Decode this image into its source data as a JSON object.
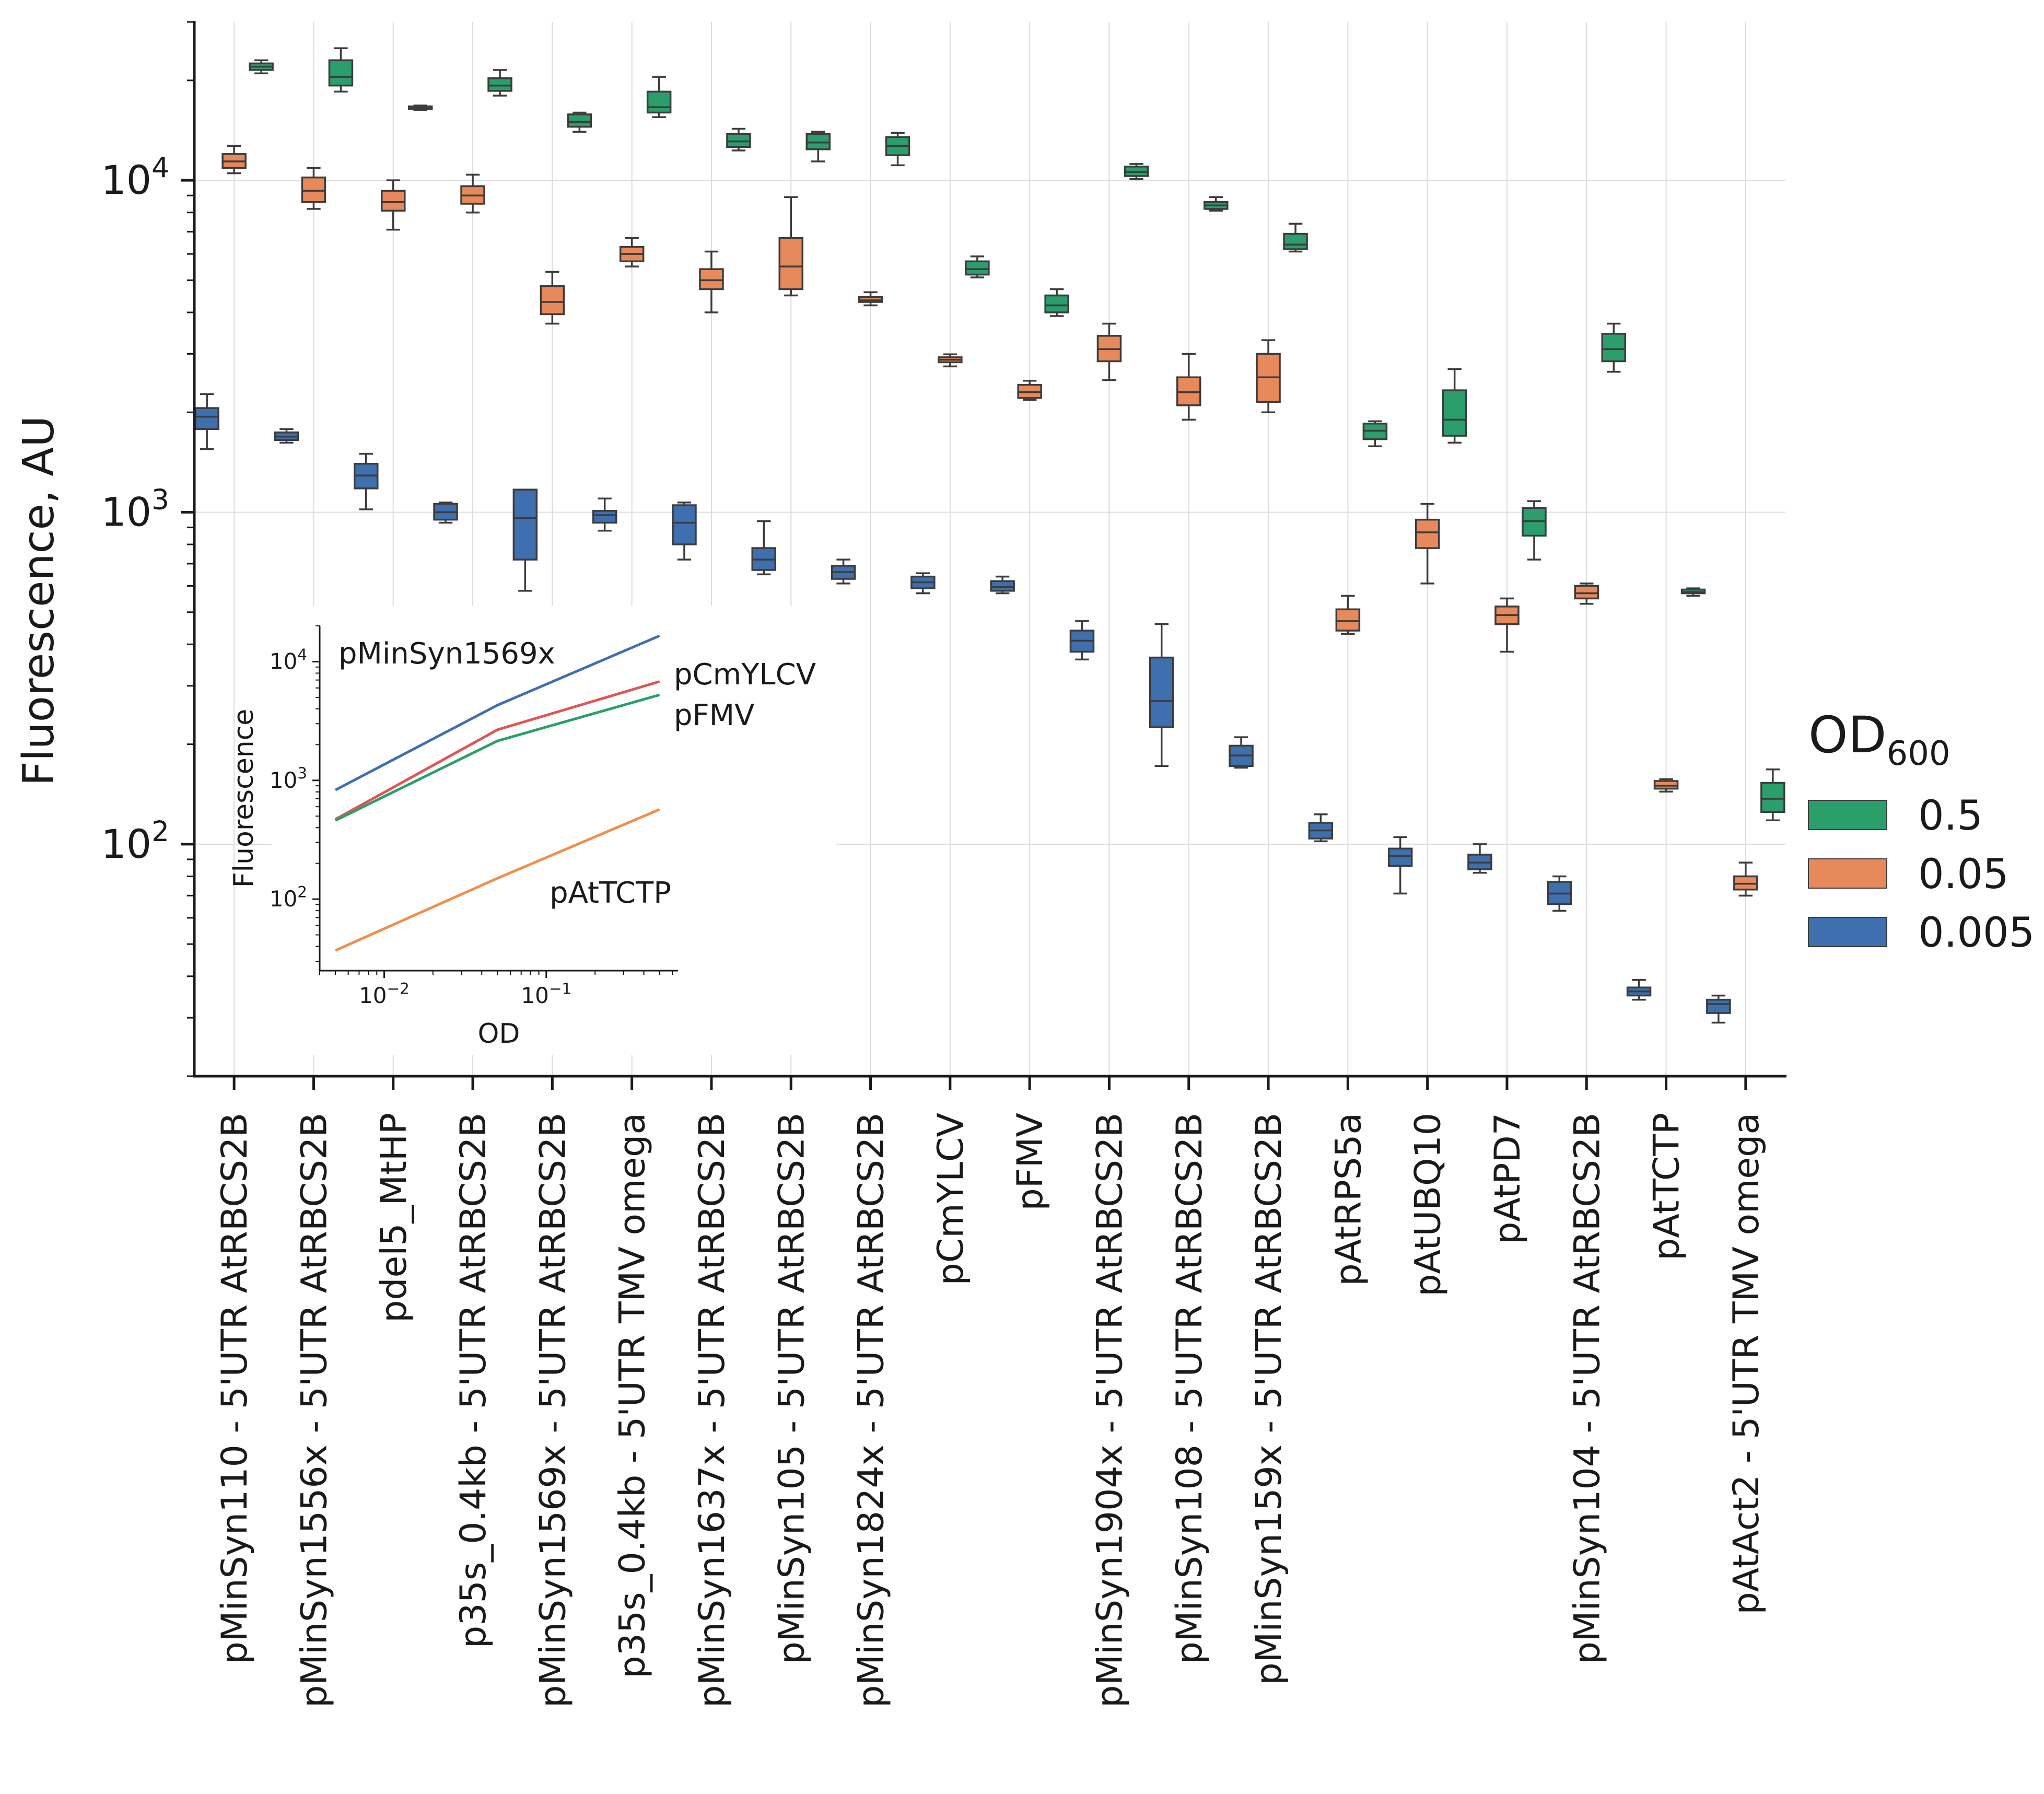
{
  "chart_data": {
    "type": "box",
    "ylabel": "Fluorescence, AU",
    "yscale": "log",
    "ylim": [
      20,
      30000
    ],
    "y_ticks": [
      {
        "value": 100,
        "base": "10",
        "exp": "2"
      },
      {
        "value": 1000,
        "base": "10",
        "exp": "3"
      },
      {
        "value": 10000,
        "base": "10",
        "exp": "4"
      }
    ],
    "legend": {
      "title_main": "OD",
      "title_sub": "600",
      "placement": "right",
      "entries": [
        {
          "label": "0.5",
          "color": "#2a9e6b"
        },
        {
          "label": "0.05",
          "color": "#e8895c"
        },
        {
          "label": "0.005",
          "color": "#3e6fae"
        }
      ]
    },
    "categories": [
      "pMinSyn110 - 5'UTR AtRBCS2B",
      "pMinSyn1556x - 5'UTR AtRBCS2B",
      "pdel5_MtHP",
      "p35s_0.4kb - 5'UTR AtRBCS2B",
      "pMinSyn1569x - 5'UTR AtRBCS2B",
      "p35s_0.4kb - 5'UTR TMV omega",
      "pMinSyn1637x - 5'UTR AtRBCS2B",
      "pMinSyn105 - 5'UTR AtRBCS2B",
      "pMinSyn1824x - 5'UTR AtRBCS2B",
      "pCmYLCV",
      "pFMV",
      "pMinSyn1904x - 5'UTR AtRBCS2B",
      "pMinSyn108 - 5'UTR AtRBCS2B",
      "pMinSyn159x - 5'UTR AtRBCS2B",
      "pAtRPS5a",
      "pAtUBQ10",
      "pAtPD7",
      "pMinSyn104 - 5'UTR AtRBCS2B",
      "pAtTCTP",
      "pAtAct2 - 5'UTR TMV omega"
    ],
    "series": [
      {
        "name": "0.5",
        "color": "#2a9e6b",
        "stats": [
          [
            21000,
            21500,
            22000,
            22500,
            23000
          ],
          [
            18500,
            19300,
            20500,
            23000,
            25000
          ],
          [
            16300,
            16400,
            16500,
            16700,
            16800
          ],
          [
            18000,
            18600,
            19300,
            20300,
            21500
          ],
          [
            14000,
            14500,
            15000,
            15800,
            16000
          ],
          [
            15500,
            16000,
            16600,
            18500,
            20500
          ],
          [
            12300,
            12600,
            13100,
            13800,
            14300
          ],
          [
            11400,
            12400,
            13000,
            13800,
            14000
          ],
          [
            11100,
            11900,
            12700,
            13500,
            13900
          ],
          [
            5100,
            5200,
            5400,
            5700,
            5900
          ],
          [
            3900,
            4000,
            4200,
            4500,
            4700
          ],
          [
            10100,
            10300,
            10600,
            11000,
            11200
          ],
          [
            8100,
            8200,
            8400,
            8600,
            8900
          ],
          [
            6100,
            6200,
            6400,
            6900,
            7400
          ],
          [
            1580,
            1660,
            1760,
            1850,
            1880
          ],
          [
            1620,
            1700,
            1900,
            2330,
            2700
          ],
          [
            720,
            850,
            940,
            1030,
            1080
          ],
          [
            2650,
            2850,
            3100,
            3450,
            3700
          ],
          [
            560,
            570,
            575,
            585,
            590
          ],
          [
            118,
            125,
            137,
            153,
            168
          ]
        ]
      },
      {
        "name": "0.05",
        "color": "#e8895c",
        "stats": [
          [
            10500,
            10900,
            11400,
            12000,
            12700
          ],
          [
            8200,
            8600,
            9300,
            10200,
            10900
          ],
          [
            7100,
            8100,
            8600,
            9300,
            10000
          ],
          [
            8000,
            8500,
            9000,
            9600,
            10400
          ],
          [
            3700,
            3950,
            4300,
            4800,
            5300
          ],
          [
            5500,
            5700,
            6000,
            6300,
            6700
          ],
          [
            4000,
            4700,
            5000,
            5400,
            6100
          ],
          [
            4500,
            4700,
            5500,
            6700,
            8900
          ],
          [
            4200,
            4300,
            4350,
            4450,
            4600
          ],
          [
            2750,
            2830,
            2880,
            2930,
            2990
          ],
          [
            2180,
            2210,
            2300,
            2420,
            2490
          ],
          [
            2500,
            2850,
            3100,
            3400,
            3700
          ],
          [
            1900,
            2100,
            2300,
            2550,
            3000
          ],
          [
            2000,
            2150,
            2550,
            3000,
            3300
          ],
          [
            430,
            440,
            470,
            510,
            560
          ],
          [
            610,
            780,
            870,
            950,
            1060
          ],
          [
            380,
            460,
            490,
            520,
            550
          ],
          [
            530,
            550,
            570,
            600,
            610
          ],
          [
            144,
            147,
            150,
            155,
            157
          ],
          [
            70,
            73,
            76,
            80,
            88
          ]
        ]
      },
      {
        "name": "0.005",
        "color": "#3e6fae",
        "stats": [
          [
            1550,
            1780,
            1940,
            2060,
            2270
          ],
          [
            1620,
            1650,
            1690,
            1740,
            1780
          ],
          [
            1020,
            1180,
            1290,
            1400,
            1500
          ],
          [
            930,
            950,
            1000,
            1060,
            1070
          ],
          [
            580,
            720,
            960,
            1170,
            1170
          ],
          [
            880,
            930,
            980,
            1010,
            1100
          ],
          [
            720,
            800,
            930,
            1050,
            1070
          ],
          [
            650,
            670,
            720,
            780,
            940
          ],
          [
            610,
            630,
            660,
            690,
            720
          ],
          [
            570,
            590,
            615,
            640,
            655
          ],
          [
            570,
            580,
            595,
            620,
            640
          ],
          [
            360,
            380,
            410,
            440,
            470
          ],
          [
            172,
            225,
            270,
            365,
            460
          ],
          [
            170,
            172,
            185,
            198,
            210
          ],
          [
            102,
            104,
            110,
            116,
            123
          ],
          [
            71,
            86,
            92,
            97,
            105
          ],
          [
            82,
            84,
            88,
            93,
            100
          ],
          [
            63,
            66,
            71,
            77,
            80
          ],
          [
            34,
            35,
            36,
            37,
            39
          ],
          [
            29,
            31,
            33,
            34,
            35
          ]
        ]
      }
    ],
    "inset": {
      "type": "line",
      "xlabel": "OD",
      "ylabel": "Fluorescence",
      "xscale": "log",
      "yscale": "log",
      "xlim": [
        0.004,
        0.65
      ],
      "ylim": [
        25,
        20000
      ],
      "x_ticks": [
        {
          "value": 0.01,
          "base": "10",
          "exp": "−2"
        },
        {
          "value": 0.1,
          "base": "10",
          "exp": "−1"
        }
      ],
      "y_ticks": [
        {
          "value": 100,
          "base": "10",
          "exp": "2"
        },
        {
          "value": 1000,
          "base": "10",
          "exp": "3"
        },
        {
          "value": 10000,
          "base": "10",
          "exp": "4"
        }
      ],
      "series": [
        {
          "name": "pMinSyn1569x",
          "color": "#3e6fae",
          "x": [
            0.005,
            0.05,
            0.5
          ],
          "y": [
            830,
            4300,
            16500
          ]
        },
        {
          "name": "pCmYLCV",
          "color": "#e05552",
          "x": [
            0.005,
            0.05,
            0.5
          ],
          "y": [
            470,
            2670,
            6800
          ]
        },
        {
          "name": "pFMV",
          "color": "#2a9e6b",
          "x": [
            0.005,
            0.05,
            0.5
          ],
          "y": [
            460,
            2150,
            5250
          ]
        },
        {
          "name": "pAtTCTP",
          "color": "#f28e4a",
          "x": [
            0.005,
            0.05,
            0.5
          ],
          "y": [
            37,
            150,
            570
          ]
        }
      ]
    }
  }
}
